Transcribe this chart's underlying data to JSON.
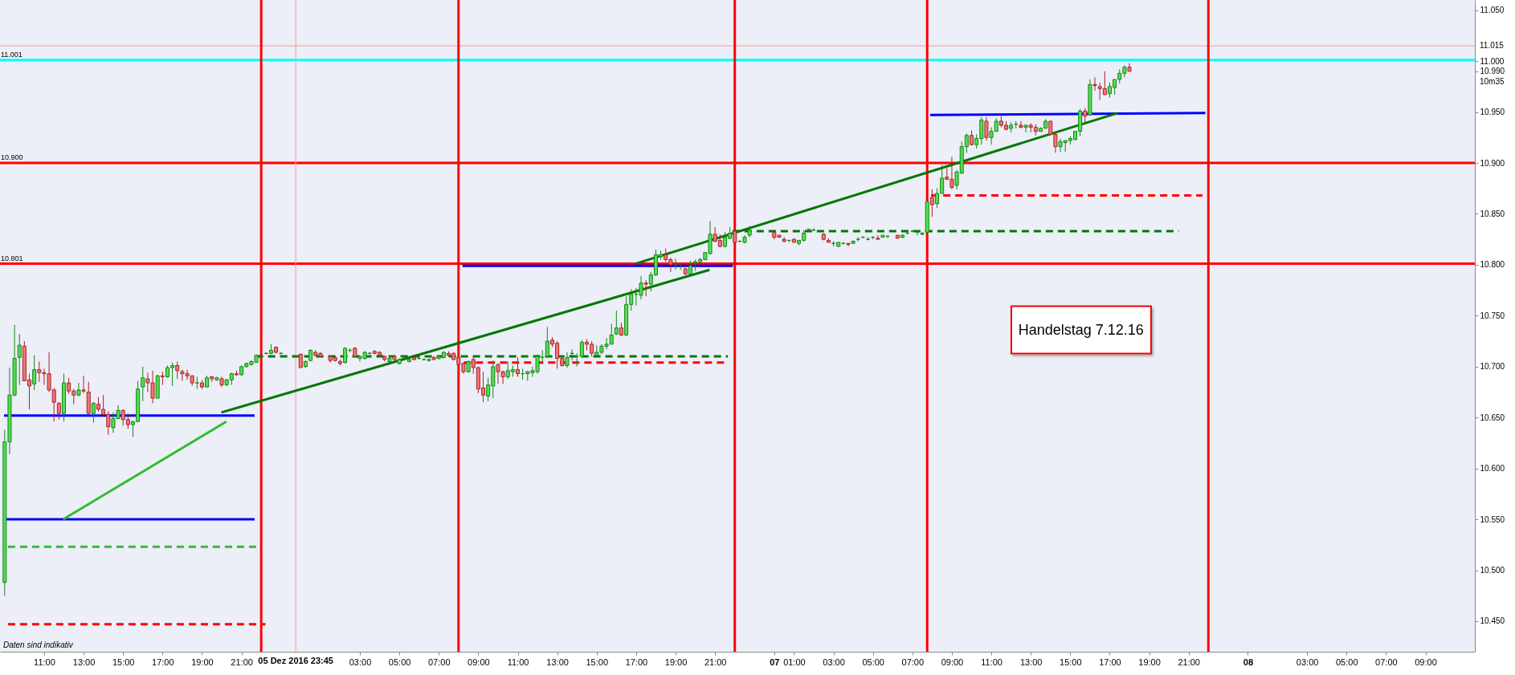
{
  "chart_data": {
    "type": "candlestick",
    "x": [
      "2016-12-05T09:00",
      "2016-12-05T09:15",
      "2016-12-05T09:30",
      "2016-12-05T09:45",
      "2016-12-05T10:00",
      "2016-12-05T10:15",
      "2016-12-05T10:30",
      "2016-12-05T10:45",
      "2016-12-05T11:00",
      "2016-12-05T11:15",
      "2016-12-05T11:30",
      "2016-12-05T11:45",
      "2016-12-05T12:00",
      "2016-12-05T12:15",
      "2016-12-05T12:30",
      "2016-12-05T12:45",
      "2016-12-05T13:00",
      "2016-12-05T13:15",
      "2016-12-05T13:30",
      "2016-12-05T13:45",
      "2016-12-05T14:00",
      "2016-12-05T14:15",
      "2016-12-05T14:30",
      "2016-12-05T14:45",
      "2016-12-05T15:00",
      "2016-12-05T15:15",
      "2016-12-05T15:30",
      "2016-12-05T15:45",
      "2016-12-05T16:00",
      "2016-12-05T16:15",
      "2016-12-05T16:30",
      "2016-12-05T16:45",
      "2016-12-05T17:00",
      "2016-12-05T17:15",
      "2016-12-05T17:30",
      "2016-12-05T17:45",
      "2016-12-05T18:00",
      "2016-12-05T18:15",
      "2016-12-05T18:30",
      "2016-12-05T18:45",
      "2016-12-05T19:00",
      "2016-12-05T19:15",
      "2016-12-05T19:30",
      "2016-12-05T19:45",
      "2016-12-05T20:00",
      "2016-12-05T20:15",
      "2016-12-05T20:30",
      "2016-12-05T20:45",
      "2016-12-05T21:00",
      "2016-12-05T21:15",
      "2016-12-05T21:30",
      "2016-12-05T21:45",
      "2016-12-05T22:15",
      "2016-12-05T22:30",
      "2016-12-05T22:45",
      "2016-12-05T23:00",
      "2016-12-06T00:00",
      "2016-12-06T00:15",
      "2016-12-06T00:30",
      "2016-12-06T00:45",
      "2016-12-06T01:00",
      "2016-12-06T01:30",
      "2016-12-06T01:45",
      "2016-12-06T02:00",
      "2016-12-06T02:15",
      "2016-12-06T02:30",
      "2016-12-06T02:45",
      "2016-12-06T03:00",
      "2016-12-06T03:15",
      "2016-12-06T03:30",
      "2016-12-06T03:45",
      "2016-12-06T04:00",
      "2016-12-06T04:15",
      "2016-12-06T04:30",
      "2016-12-06T04:45",
      "2016-12-06T05:00",
      "2016-12-06T05:30",
      "2016-12-06T05:45",
      "2016-12-06T06:00",
      "2016-12-06T06:15",
      "2016-12-06T06:30",
      "2016-12-06T06:45",
      "2016-12-06T07:00",
      "2016-12-06T07:15",
      "2016-12-06T07:30",
      "2016-12-06T07:45",
      "2016-12-06T08:00",
      "2016-12-06T08:15",
      "2016-12-06T08:30",
      "2016-12-06T08:45",
      "2016-12-06T09:00",
      "2016-12-06T09:15",
      "2016-12-06T09:30",
      "2016-12-06T09:45",
      "2016-12-06T10:00",
      "2016-12-06T10:15",
      "2016-12-06T10:30",
      "2016-12-06T10:45",
      "2016-12-06T11:00",
      "2016-12-06T11:15",
      "2016-12-06T11:30",
      "2016-12-06T11:45",
      "2016-12-06T12:00",
      "2016-12-06T12:15",
      "2016-12-06T12:30",
      "2016-12-06T12:45",
      "2016-12-06T13:00",
      "2016-12-06T13:15",
      "2016-12-06T13:30",
      "2016-12-06T13:45",
      "2016-12-06T14:00",
      "2016-12-06T14:15",
      "2016-12-06T14:30",
      "2016-12-06T14:45",
      "2016-12-06T15:00",
      "2016-12-06T15:15",
      "2016-12-06T15:30",
      "2016-12-06T15:45",
      "2016-12-06T16:00",
      "2016-12-06T16:15",
      "2016-12-06T16:30",
      "2016-12-06T16:45",
      "2016-12-06T17:00",
      "2016-12-06T17:15",
      "2016-12-06T17:30",
      "2016-12-06T17:45",
      "2016-12-06T18:00",
      "2016-12-06T18:15",
      "2016-12-06T18:30",
      "2016-12-06T18:45",
      "2016-12-06T19:00",
      "2016-12-06T19:15",
      "2016-12-06T19:30",
      "2016-12-06T19:45",
      "2016-12-06T20:00",
      "2016-12-06T20:15",
      "2016-12-06T20:30",
      "2016-12-06T20:45",
      "2016-12-06T21:00",
      "2016-12-06T21:15",
      "2016-12-06T21:30",
      "2016-12-06T21:45",
      "2016-12-06T22:00",
      "2016-12-06T22:15",
      "2016-12-06T22:30",
      "2016-12-06T22:45",
      "2016-12-07T00:00",
      "2016-12-07T00:15",
      "2016-12-07T00:30",
      "2016-12-07T00:45",
      "2016-12-07T01:00",
      "2016-12-07T01:15",
      "2016-12-07T01:30",
      "2016-12-07T01:45",
      "2016-12-07T02:00",
      "2016-12-07T02:30",
      "2016-12-07T02:45",
      "2016-12-07T03:00",
      "2016-12-07T03:15",
      "2016-12-07T03:30",
      "2016-12-07T03:45",
      "2016-12-07T04:00",
      "2016-12-07T04:15",
      "2016-12-07T04:30",
      "2016-12-07T04:45",
      "2016-12-07T05:00",
      "2016-12-07T05:15",
      "2016-12-07T05:30",
      "2016-12-07T05:45",
      "2016-12-07T06:15",
      "2016-12-07T06:30",
      "2016-12-07T06:45",
      "2016-12-07T07:00",
      "2016-12-07T07:15",
      "2016-12-07T07:30",
      "2016-12-07T07:45",
      "2016-12-07T08:00",
      "2016-12-07T08:15",
      "2016-12-07T08:30",
      "2016-12-07T08:45",
      "2016-12-07T09:00",
      "2016-12-07T09:15",
      "2016-12-07T09:30",
      "2016-12-07T09:45",
      "2016-12-07T10:00",
      "2016-12-07T10:15",
      "2016-12-07T10:30",
      "2016-12-07T10:45",
      "2016-12-07T11:00",
      "2016-12-07T11:15",
      "2016-12-07T11:30",
      "2016-12-07T11:45",
      "2016-12-07T12:00",
      "2016-12-07T12:15",
      "2016-12-07T12:30",
      "2016-12-07T12:45",
      "2016-12-07T13:00",
      "2016-12-07T13:15",
      "2016-12-07T13:30",
      "2016-12-07T13:45",
      "2016-12-07T14:00",
      "2016-12-07T14:15",
      "2016-12-07T14:30",
      "2016-12-07T14:45",
      "2016-12-07T15:00",
      "2016-12-07T15:15",
      "2016-12-07T15:30",
      "2016-12-07T15:45",
      "2016-12-07T16:00",
      "2016-12-07T16:15",
      "2016-12-07T16:30",
      "2016-12-07T16:45",
      "2016-12-07T17:00",
      "2016-12-07T17:15",
      "2016-12-07T17:30",
      "2016-12-07T17:45",
      "2016-12-07T18:00"
    ],
    "ohlc": [
      [
        10.488,
        10.638,
        10.475,
        10.626
      ],
      [
        10.626,
        10.699,
        10.614,
        10.672
      ],
      [
        10.672,
        10.741,
        10.671,
        10.708
      ],
      [
        10.709,
        10.732,
        10.682,
        10.721
      ],
      [
        10.72,
        10.725,
        10.686,
        10.686
      ],
      [
        10.687,
        10.693,
        10.658,
        10.681
      ],
      [
        10.683,
        10.711,
        10.677,
        10.697
      ],
      [
        10.697,
        10.705,
        10.685,
        10.694
      ],
      [
        10.694,
        10.698,
        10.682,
        10.693
      ],
      [
        10.693,
        10.714,
        10.675,
        10.677
      ],
      [
        10.677,
        10.679,
        10.646,
        10.665
      ],
      [
        10.664,
        10.665,
        10.648,
        10.654
      ],
      [
        10.654,
        10.693,
        10.646,
        10.684
      ],
      [
        10.684,
        10.689,
        10.673,
        10.676
      ],
      [
        10.676,
        10.678,
        10.663,
        10.672
      ],
      [
        10.672,
        10.684,
        10.671,
        10.677
      ],
      [
        10.677,
        10.691,
        10.674,
        10.676
      ],
      [
        10.675,
        10.685,
        10.653,
        10.654
      ],
      [
        10.654,
        10.665,
        10.645,
        10.664
      ],
      [
        10.663,
        10.67,
        10.656,
        10.658
      ],
      [
        10.658,
        10.672,
        10.652,
        10.653
      ],
      [
        10.653,
        10.656,
        10.633,
        10.641
      ],
      [
        10.64,
        10.655,
        10.635,
        10.649
      ],
      [
        10.649,
        10.662,
        10.649,
        10.657
      ],
      [
        10.657,
        10.658,
        10.642,
        10.648
      ],
      [
        10.648,
        10.654,
        10.639,
        10.643
      ],
      [
        10.643,
        10.647,
        10.631,
        10.646
      ],
      [
        10.646,
        10.686,
        10.646,
        10.678
      ],
      [
        10.68,
        10.7,
        10.666,
        10.689
      ],
      [
        10.688,
        10.694,
        10.675,
        10.684
      ],
      [
        10.684,
        10.696,
        10.664,
        10.669
      ],
      [
        10.669,
        10.692,
        10.669,
        10.691
      ],
      [
        10.691,
        10.695,
        10.682,
        10.69
      ],
      [
        10.69,
        10.701,
        10.689,
        10.699
      ],
      [
        10.699,
        10.704,
        10.681,
        10.701
      ],
      [
        10.701,
        10.705,
        10.688,
        10.696
      ],
      [
        10.695,
        10.697,
        10.686,
        10.693
      ],
      [
        10.693,
        10.697,
        10.687,
        10.691
      ],
      [
        10.691,
        10.691,
        10.681,
        10.684
      ],
      [
        10.684,
        10.69,
        10.678,
        10.684
      ],
      [
        10.684,
        10.687,
        10.678,
        10.68
      ],
      [
        10.68,
        10.691,
        10.68,
        10.689
      ],
      [
        10.69,
        10.691,
        10.685,
        10.688
      ],
      [
        10.687,
        10.69,
        10.686,
        10.689
      ],
      [
        10.688,
        10.69,
        10.68,
        10.682
      ],
      [
        10.682,
        10.688,
        10.681,
        10.687
      ],
      [
        10.687,
        10.694,
        10.682,
        10.693
      ],
      [
        10.693,
        10.696,
        10.691,
        10.692
      ],
      [
        10.692,
        10.701,
        10.691,
        10.7
      ],
      [
        10.7,
        10.704,
        10.699,
        10.703
      ],
      [
        10.702,
        10.706,
        10.701,
        10.705
      ],
      [
        10.704,
        10.712,
        10.704,
        10.711
      ],
      [
        10.713,
        10.714,
        10.712,
        10.713
      ],
      [
        10.713,
        10.722,
        10.712,
        10.716
      ],
      [
        10.719,
        10.72,
        10.713,
        10.714
      ],
      [
        10.713,
        10.714,
        10.712,
        10.713
      ],
      [
        10.712,
        10.713,
        10.699,
        10.699
      ],
      [
        10.7,
        10.706,
        10.699,
        10.705
      ],
      [
        10.706,
        10.717,
        10.705,
        10.716
      ],
      [
        10.714,
        10.716,
        10.71,
        10.711
      ],
      [
        10.713,
        10.714,
        10.709,
        10.71
      ],
      [
        10.71,
        10.711,
        10.704,
        10.706
      ],
      [
        10.709,
        10.71,
        10.705,
        10.706
      ],
      [
        10.705,
        10.707,
        10.701,
        10.703
      ],
      [
        10.704,
        10.719,
        10.703,
        10.718
      ],
      [
        10.716,
        10.718,
        10.714,
        10.716
      ],
      [
        10.718,
        10.719,
        10.709,
        10.71
      ],
      [
        10.708,
        10.711,
        10.705,
        10.71
      ],
      [
        10.708,
        10.715,
        10.707,
        10.714
      ],
      [
        10.713,
        10.714,
        10.712,
        10.713
      ],
      [
        10.715,
        10.716,
        10.712,
        10.713
      ],
      [
        10.714,
        10.715,
        10.71,
        10.711
      ],
      [
        10.71,
        10.711,
        10.705,
        10.707
      ],
      [
        10.705,
        10.709,
        10.704,
        10.708
      ],
      [
        10.71,
        10.711,
        10.705,
        10.707
      ],
      [
        10.703,
        10.708,
        10.702,
        10.707
      ],
      [
        10.705,
        10.708,
        10.704,
        10.707
      ],
      [
        10.709,
        10.71,
        10.706,
        10.707
      ],
      [
        10.708,
        10.709,
        10.707,
        10.708
      ],
      [
        10.707,
        10.708,
        10.706,
        10.707
      ],
      [
        10.706,
        10.708,
        10.705,
        10.707
      ],
      [
        10.709,
        10.71,
        10.706,
        10.707
      ],
      [
        10.708,
        10.711,
        10.707,
        10.71
      ],
      [
        10.709,
        10.715,
        10.708,
        10.714
      ],
      [
        10.713,
        10.715,
        10.71,
        10.711
      ],
      [
        10.713,
        10.714,
        10.706,
        10.707
      ],
      [
        10.709,
        10.71,
        10.701,
        10.702
      ],
      [
        10.703,
        10.704,
        10.693,
        10.695
      ],
      [
        10.695,
        10.706,
        10.694,
        10.705
      ],
      [
        10.707,
        10.709,
        10.693,
        10.699
      ],
      [
        10.699,
        10.7,
        10.674,
        10.678
      ],
      [
        10.679,
        10.695,
        10.665,
        10.672
      ],
      [
        10.671,
        10.689,
        10.666,
        10.682
      ],
      [
        10.681,
        10.706,
        10.669,
        10.7
      ],
      [
        10.702,
        10.703,
        10.683,
        10.695
      ],
      [
        10.695,
        10.696,
        10.683,
        10.69
      ],
      [
        10.69,
        10.705,
        10.688,
        10.696
      ],
      [
        10.695,
        10.701,
        10.69,
        10.697
      ],
      [
        10.697,
        10.709,
        10.69,
        10.693
      ],
      [
        10.693,
        10.698,
        10.687,
        10.693
      ],
      [
        10.693,
        10.696,
        10.686,
        10.695
      ],
      [
        10.694,
        10.7,
        10.69,
        10.696
      ],
      [
        10.695,
        10.712,
        10.693,
        10.71
      ],
      [
        10.709,
        10.716,
        10.704,
        10.709
      ],
      [
        10.71,
        10.739,
        10.709,
        10.725
      ],
      [
        10.726,
        10.729,
        10.719,
        10.722
      ],
      [
        10.723,
        10.725,
        10.698,
        10.708
      ],
      [
        10.708,
        10.709,
        10.7,
        10.701
      ],
      [
        10.701,
        10.714,
        10.699,
        10.709
      ],
      [
        10.713,
        10.717,
        10.706,
        10.713
      ],
      [
        10.71,
        10.713,
        10.7,
        10.71
      ],
      [
        10.71,
        10.726,
        10.709,
        10.724
      ],
      [
        10.724,
        10.727,
        10.716,
        10.722
      ],
      [
        10.722,
        10.725,
        10.71,
        10.713
      ],
      [
        10.711,
        10.721,
        10.71,
        10.714
      ],
      [
        10.714,
        10.722,
        10.712,
        10.72
      ],
      [
        10.72,
        10.728,
        10.717,
        10.722
      ],
      [
        10.722,
        10.742,
        10.722,
        10.731
      ],
      [
        10.732,
        10.755,
        10.731,
        10.738
      ],
      [
        10.738,
        10.743,
        10.73,
        10.731
      ],
      [
        10.731,
        10.769,
        10.73,
        10.761
      ],
      [
        10.761,
        10.776,
        10.755,
        10.771
      ],
      [
        10.771,
        10.777,
        10.76,
        10.771
      ],
      [
        10.77,
        10.789,
        10.766,
        10.782
      ],
      [
        10.782,
        10.785,
        10.769,
        10.781
      ],
      [
        10.781,
        10.793,
        10.774,
        10.79
      ],
      [
        10.79,
        10.815,
        10.789,
        10.81
      ],
      [
        10.808,
        10.814,
        10.805,
        10.81
      ],
      [
        10.81,
        10.816,
        10.803,
        10.805
      ],
      [
        10.805,
        10.807,
        10.793,
        10.8
      ],
      [
        10.8,
        10.806,
        10.795,
        10.8
      ],
      [
        10.798,
        10.8,
        10.795,
        10.798
      ],
      [
        10.796,
        10.797,
        10.79,
        10.791
      ],
      [
        10.791,
        10.804,
        10.79,
        10.799
      ],
      [
        10.802,
        10.805,
        10.794,
        10.803
      ],
      [
        10.803,
        10.807,
        10.802,
        10.805
      ],
      [
        10.805,
        10.812,
        10.805,
        10.812
      ],
      [
        10.811,
        10.843,
        10.81,
        10.83
      ],
      [
        10.83,
        10.837,
        10.822,
        10.823
      ],
      [
        10.824,
        10.83,
        10.817,
        10.818
      ],
      [
        10.818,
        10.832,
        10.817,
        10.827
      ],
      [
        10.826,
        10.837,
        10.825,
        10.831
      ],
      [
        10.833,
        10.833,
        10.821,
        10.822
      ],
      [
        10.823,
        10.824,
        10.822,
        10.823
      ],
      [
        10.822,
        10.829,
        10.821,
        10.827
      ],
      [
        10.829,
        10.838,
        10.827,
        10.834
      ],
      [
        10.832,
        10.833,
        10.825,
        10.827
      ],
      [
        10.829,
        10.829,
        10.827,
        10.827
      ],
      [
        10.825,
        10.827,
        10.822,
        10.823
      ],
      [
        10.824,
        10.824,
        10.822,
        10.824
      ],
      [
        10.825,
        10.826,
        10.822,
        10.822
      ],
      [
        10.821,
        10.824,
        10.819,
        10.824
      ],
      [
        10.824,
        10.834,
        10.823,
        10.831
      ],
      [
        10.835,
        10.835,
        10.833,
        10.835
      ],
      [
        10.834,
        10.836,
        10.833,
        10.834
      ],
      [
        10.83,
        10.831,
        10.824,
        10.825
      ],
      [
        10.824,
        10.826,
        10.822,
        10.822
      ],
      [
        10.821,
        10.823,
        10.818,
        10.821
      ],
      [
        10.818,
        10.822,
        10.818,
        10.822
      ],
      [
        10.821,
        10.822,
        10.82,
        10.821
      ],
      [
        10.821,
        10.821,
        10.818,
        10.82
      ],
      [
        10.821,
        10.824,
        10.821,
        10.823
      ],
      [
        10.825,
        10.827,
        10.823,
        10.825
      ],
      [
        10.827,
        10.828,
        10.826,
        10.827
      ],
      [
        10.825,
        10.827,
        10.824,
        10.825
      ],
      [
        10.827,
        10.828,
        10.825,
        10.827
      ],
      [
        10.826,
        10.829,
        10.825,
        10.825
      ],
      [
        10.827,
        10.829,
        10.827,
        10.829
      ],
      [
        10.828,
        10.829,
        10.826,
        10.828
      ],
      [
        10.829,
        10.829,
        10.826,
        10.826
      ],
      [
        10.827,
        10.83,
        10.826,
        10.829
      ],
      [
        10.831,
        10.834,
        10.83,
        10.831
      ],
      [
        10.833,
        10.834,
        10.832,
        10.833
      ],
      [
        10.832,
        10.833,
        10.829,
        10.832
      ],
      [
        10.83,
        10.832,
        10.829,
        10.831
      ],
      [
        10.832,
        10.862,
        10.832,
        10.862
      ],
      [
        10.866,
        10.874,
        10.847,
        10.859
      ],
      [
        10.86,
        10.875,
        10.856,
        10.87
      ],
      [
        10.87,
        10.898,
        10.87,
        10.885
      ],
      [
        10.886,
        10.895,
        10.883,
        10.884
      ],
      [
        10.884,
        10.906,
        10.874,
        10.876
      ],
      [
        10.878,
        10.893,
        10.874,
        10.891
      ],
      [
        10.89,
        10.921,
        10.889,
        10.916
      ],
      [
        10.916,
        10.929,
        10.91,
        10.927
      ],
      [
        10.927,
        10.932,
        10.917,
        10.918
      ],
      [
        10.918,
        10.928,
        10.914,
        10.924
      ],
      [
        10.924,
        10.945,
        10.918,
        10.942
      ],
      [
        10.941,
        10.945,
        10.922,
        10.925
      ],
      [
        10.925,
        10.935,
        10.918,
        10.931
      ],
      [
        10.931,
        10.944,
        10.931,
        10.941
      ],
      [
        10.941,
        10.946,
        10.935,
        10.937
      ],
      [
        10.937,
        10.941,
        10.932,
        10.933
      ],
      [
        10.934,
        10.94,
        10.93,
        10.937
      ],
      [
        10.938,
        10.941,
        10.934,
        10.938
      ],
      [
        10.937,
        10.941,
        10.934,
        10.935
      ],
      [
        10.935,
        10.938,
        10.93,
        10.937
      ],
      [
        10.937,
        10.939,
        10.93,
        10.935
      ],
      [
        10.935,
        10.938,
        10.927,
        10.931
      ],
      [
        10.931,
        10.935,
        10.931,
        10.934
      ],
      [
        10.934,
        10.943,
        10.934,
        10.941
      ],
      [
        10.941,
        10.941,
        10.927,
        10.928
      ],
      [
        10.928,
        10.929,
        10.91,
        10.916
      ],
      [
        10.916,
        10.924,
        10.911,
        10.921
      ],
      [
        10.92,
        10.922,
        10.911,
        10.922
      ],
      [
        10.922,
        10.926,
        10.918,
        10.924
      ],
      [
        10.923,
        10.931,
        10.922,
        10.931
      ],
      [
        10.931,
        10.953,
        10.926,
        10.951
      ],
      [
        10.951,
        10.954,
        10.94,
        10.946
      ],
      [
        10.947,
        10.982,
        10.947,
        10.977
      ],
      [
        10.977,
        10.984,
        10.971,
        10.976
      ],
      [
        10.975,
        10.979,
        10.962,
        10.973
      ],
      [
        10.973,
        10.99,
        10.967,
        10.967
      ],
      [
        10.968,
        10.979,
        10.964,
        10.975
      ],
      [
        10.974,
        10.982,
        10.967,
        10.982
      ],
      [
        10.982,
        10.992,
        10.978,
        10.988
      ],
      [
        10.988,
        10.996,
        10.984,
        10.994
      ],
      [
        10.994,
        10.998,
        10.99,
        10.99
      ]
    ],
    "series": [
      {
        "type": "line",
        "color": "#0000ff",
        "x": [
          "2016-12-05T08:58",
          "2016-12-05T21:40"
        ],
        "values": [
          10.652,
          10.652
        ]
      },
      {
        "type": "line",
        "color": "#0000ff",
        "x": [
          "2016-12-05T08:58",
          "2016-12-05T21:40"
        ],
        "values": [
          10.55,
          10.55
        ]
      },
      {
        "type": "line",
        "color": "#0000ff",
        "x": [
          "2016-12-06T08:12",
          "2016-12-06T21:54"
        ],
        "values": [
          10.799,
          10.799
        ]
      },
      {
        "type": "line",
        "color": "#0000ff",
        "x": [
          "2016-12-07T07:54",
          "2016-12-07T21:51"
        ],
        "values": [
          10.947,
          10.949
        ]
      },
      {
        "type": "line",
        "color": "#33bb33",
        "x": [
          "2016-12-05T11:58",
          "2016-12-05T20:14"
        ],
        "values": [
          10.55,
          10.646
        ]
      },
      {
        "type": "line",
        "color": "#007700",
        "x": [
          "2016-12-05T19:59",
          "2016-12-06T20:43"
        ],
        "values": [
          10.655,
          10.795
        ]
      },
      {
        "type": "line",
        "color": "#007700",
        "x": [
          "2016-12-06T16:58",
          "2016-12-07T17:24"
        ],
        "values": [
          10.801,
          10.949
        ]
      },
      {
        "type": "line",
        "color": "#33bb33",
        "line_style": "dashed",
        "x": [
          "2016-12-05T09:10",
          "2016-12-05T21:46"
        ],
        "values": [
          10.523,
          10.523
        ]
      },
      {
        "type": "line",
        "color": "#ff0000",
        "line_style": "dashed",
        "x": [
          "2016-12-05T09:10",
          "2016-12-05T22:13"
        ],
        "values": [
          10.447,
          10.447
        ]
      },
      {
        "type": "line",
        "color": "#007700",
        "line_style": "dashed",
        "x": [
          "2016-12-05T21:44",
          "2016-12-06T21:39"
        ],
        "values": [
          10.71,
          10.71
        ]
      },
      {
        "type": "line",
        "color": "#ff0000",
        "line_style": "dashed",
        "x": [
          "2016-12-06T08:16",
          "2016-12-06T21:37"
        ],
        "values": [
          10.704,
          10.704
        ]
      },
      {
        "type": "line",
        "color": "#007700",
        "line_style": "dashed",
        "x": [
          "2016-12-06T21:53",
          "2016-12-07T20:30"
        ],
        "values": [
          10.833,
          10.833
        ]
      },
      {
        "type": "line",
        "color": "#ff0000",
        "line_style": "dashed",
        "x": [
          "2016-12-07T07:57",
          "2016-12-07T21:42"
        ],
        "values": [
          10.868,
          10.868
        ]
      }
    ],
    "ref_lines": [
      {
        "axis": "y",
        "value": 11.001,
        "label": "11.001",
        "color": "#00ffff"
      },
      {
        "axis": "y",
        "value": 10.9,
        "label": "10.900",
        "color": "#ff0000"
      },
      {
        "axis": "y",
        "value": 10.801,
        "label": "10.801",
        "color": "#ff0000"
      },
      {
        "axis": "y",
        "value": 11.015,
        "label": "11.015",
        "color": "#ff9999"
      },
      {
        "axis": "x",
        "value": "2016-12-05T23:45",
        "label": "05 Dez 2016 23:45",
        "color": "#ff9999"
      },
      {
        "axis": "x",
        "value": "2016-12-05T22:00",
        "color": "#ff0000"
      },
      {
        "axis": "x",
        "value": "2016-12-06T08:00",
        "color": "#ff0000"
      },
      {
        "axis": "x",
        "value": "2016-12-06T22:00",
        "color": "#ff0000"
      },
      {
        "axis": "x",
        "value": "2016-12-07T07:45",
        "color": "#ff0000"
      },
      {
        "axis": "x",
        "value": "2016-12-07T22:00",
        "color": "#ff0000"
      }
    ],
    "annotations": [
      "Handelstag 7.12.16",
      "10m35",
      "Daten sind indikativ"
    ],
    "xlim": [
      "2016-12-05T08:58",
      "2016-12-08T11:18"
    ],
    "xticks": [
      {
        "value": "2016-12-05T11:00",
        "label": "11:00"
      },
      {
        "value": "2016-12-05T13:00",
        "label": "13:00"
      },
      {
        "value": "2016-12-05T15:00",
        "label": "15:00"
      },
      {
        "value": "2016-12-05T17:00",
        "label": "17:00"
      },
      {
        "value": "2016-12-05T19:00",
        "label": "19:00"
      },
      {
        "value": "2016-12-05T21:00",
        "label": "21:00"
      },
      {
        "value": "2016-12-06T03:00",
        "label": "03:00"
      },
      {
        "value": "2016-12-06T05:00",
        "label": "05:00"
      },
      {
        "value": "2016-12-06T07:00",
        "label": "07:00"
      },
      {
        "value": "2016-12-06T09:00",
        "label": "09:00"
      },
      {
        "value": "2016-12-06T11:00",
        "label": "11:00"
      },
      {
        "value": "2016-12-06T13:00",
        "label": "13:00"
      },
      {
        "value": "2016-12-06T15:00",
        "label": "15:00"
      },
      {
        "value": "2016-12-06T17:00",
        "label": "17:00"
      },
      {
        "value": "2016-12-06T19:00",
        "label": "19:00"
      },
      {
        "value": "2016-12-06T21:00",
        "label": "21:00"
      },
      {
        "value": "2016-12-07T00:00",
        "label": "07"
      },
      {
        "value": "2016-12-07T01:00",
        "label": "01:00"
      },
      {
        "value": "2016-12-07T03:00",
        "label": "03:00"
      },
      {
        "value": "2016-12-07T05:00",
        "label": "05:00"
      },
      {
        "value": "2016-12-07T07:00",
        "label": "07:00"
      },
      {
        "value": "2016-12-07T09:00",
        "label": "09:00"
      },
      {
        "value": "2016-12-07T11:00",
        "label": "11:00"
      },
      {
        "value": "2016-12-07T13:00",
        "label": "13:00"
      },
      {
        "value": "2016-12-07T15:00",
        "label": "15:00"
      },
      {
        "value": "2016-12-07T17:00",
        "label": "17:00"
      },
      {
        "value": "2016-12-07T19:00",
        "label": "19:00"
      },
      {
        "value": "2016-12-07T21:00",
        "label": "21:00"
      },
      {
        "value": "2016-12-08T00:00",
        "label": "08"
      },
      {
        "value": "2016-12-08T03:00",
        "label": "03:00"
      },
      {
        "value": "2016-12-08T05:00",
        "label": "05:00"
      },
      {
        "value": "2016-12-08T07:00",
        "label": "07:00"
      },
      {
        "value": "2016-12-08T09:00",
        "label": "09:00"
      }
    ],
    "ylim": [
      10.42,
      11.06
    ],
    "yticks": [
      {
        "value": 10.45,
        "label": "10.450"
      },
      {
        "value": 10.5,
        "label": "10.500"
      },
      {
        "value": 10.55,
        "label": "10.550"
      },
      {
        "value": 10.6,
        "label": "10.600"
      },
      {
        "value": 10.65,
        "label": "10.650"
      },
      {
        "value": 10.7,
        "label": "10.700"
      },
      {
        "value": 10.75,
        "label": "10.750"
      },
      {
        "value": 10.8,
        "label": "10.800"
      },
      {
        "value": 10.85,
        "label": "10.850"
      },
      {
        "value": 10.9,
        "label": "10.900"
      },
      {
        "value": 10.95,
        "label": "10.950"
      },
      {
        "value": 10.99,
        "label": "10.990"
      },
      {
        "value": 11.0,
        "label": "11.000"
      },
      {
        "value": 11.05,
        "label": "11.050"
      }
    ]
  }
}
